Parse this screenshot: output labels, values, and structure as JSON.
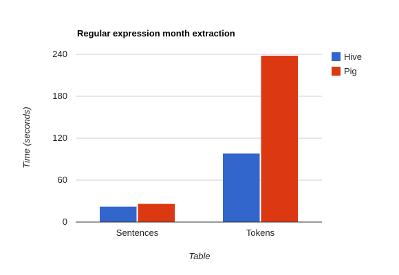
{
  "chart_data": {
    "type": "bar",
    "title": "Regular expression month extraction",
    "xlabel": "Table",
    "ylabel": "Time (seconds)",
    "categories": [
      "Sentences",
      "Tokens"
    ],
    "series": [
      {
        "name": "Hive",
        "values": [
          22,
          98
        ],
        "color": "#3366cc"
      },
      {
        "name": "Pig",
        "values": [
          26,
          238
        ],
        "color": "#dc3912"
      }
    ],
    "ylim": [
      0,
      240
    ],
    "yticks": [
      0,
      60,
      120,
      180,
      240
    ],
    "grid": true,
    "legend": "right"
  }
}
